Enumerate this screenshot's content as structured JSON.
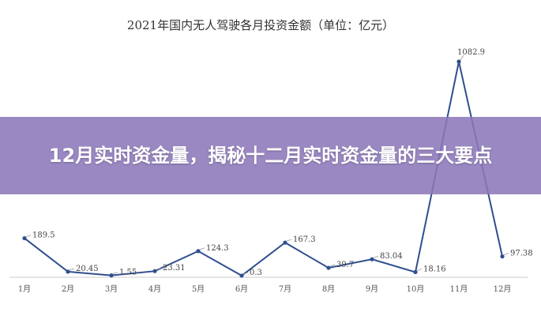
{
  "chart_data": {
    "type": "line",
    "title": "2021年国内无人驾驶各月投资金额（单位：亿元）",
    "xlabel": "",
    "ylabel": "",
    "categories": [
      "1月",
      "2月",
      "3月",
      "4月",
      "5月",
      "6月",
      "7月",
      "8月",
      "9月",
      "10月",
      "11月",
      "12月"
    ],
    "series": [
      {
        "values": [
          189.5,
          20.45,
          1.55,
          23.31,
          124.3,
          0.3,
          167.3,
          39.7,
          83.04,
          18.16,
          1082.9,
          97.38
        ],
        "labels": [
          "189.5",
          "20.45",
          "1.55",
          "23.31",
          "124.3",
          "0.3",
          "167.3",
          "39.7",
          "83.04",
          "18.16",
          "1082.9",
          "97.38"
        ],
        "color": "#2f4f8f"
      }
    ],
    "ylim": [
      0,
      1100
    ],
    "grid": false,
    "legend": "none"
  },
  "overlay": {
    "headline": "12月实时资金量，揭秘十二月实时资金量的三大要点",
    "background": "#8c78ba"
  }
}
